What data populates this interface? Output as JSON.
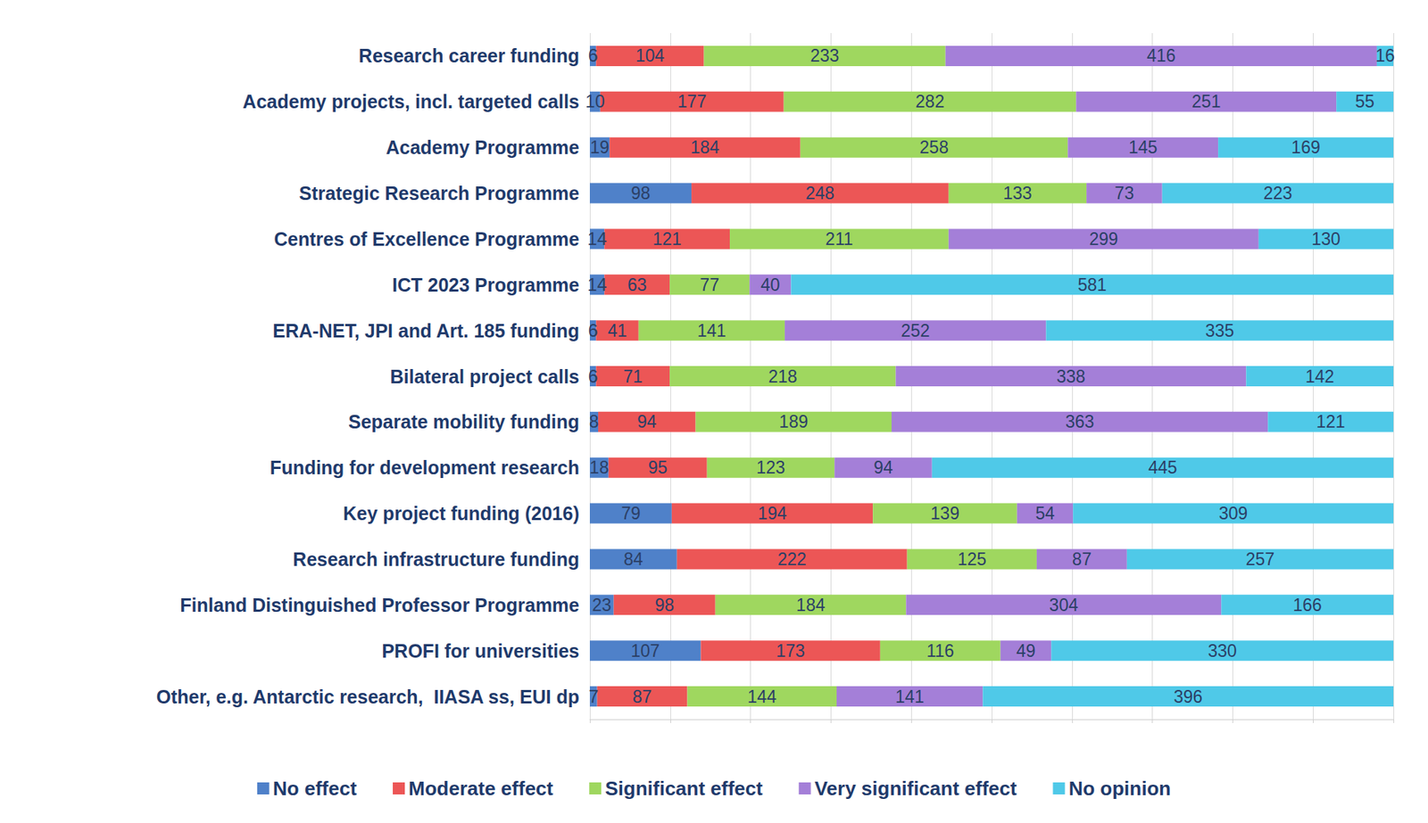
{
  "chart_data": {
    "type": "bar",
    "orientation": "horizontal",
    "stacked": true,
    "data_labels": true,
    "tick_labels": "y",
    "grid": true,
    "legend": "bottom",
    "categories": [
      "Research career funding",
      "Academy projects, incl. targeted calls",
      "Academy Programme",
      "Strategic Research Programme",
      "Centres of Excellence Programme",
      "ICT 2023 Programme",
      "ERA-NET, JPI and Art. 185 funding",
      "Bilateral project calls",
      "Separate mobility funding",
      "Funding for development research",
      "Key project funding (2016)",
      "Research infrastructure funding",
      "Finland Distinguished Professor Programme",
      "PROFI for universities",
      "Other, e.g. Antarctic research,  IIASA ss, EUI dp"
    ],
    "xlim": [
      0,
      775
    ],
    "xticks": [
      0,
      77.5,
      155,
      232.5,
      310,
      387.5,
      465,
      542.5,
      620,
      697.5,
      775
    ],
    "series": [
      {
        "name": "No effect",
        "color": "#4f81c9",
        "values": [
          6,
          10,
          19,
          98,
          14,
          14,
          6,
          6,
          8,
          18,
          79,
          84,
          23,
          107,
          7
        ]
      },
      {
        "name": "Moderate effect",
        "color": "#ec5656",
        "values": [
          104,
          177,
          184,
          248,
          121,
          63,
          41,
          71,
          94,
          95,
          194,
          222,
          98,
          173,
          87
        ]
      },
      {
        "name": "Significant effect",
        "color": "#9fd75f",
        "values": [
          233,
          282,
          258,
          133,
          211,
          77,
          141,
          218,
          189,
          123,
          139,
          125,
          184,
          116,
          144
        ]
      },
      {
        "name": "Very significant effect",
        "color": "#a47fd8",
        "values": [
          416,
          251,
          145,
          73,
          299,
          40,
          252,
          338,
          363,
          94,
          54,
          87,
          304,
          49,
          141
        ]
      },
      {
        "name": "No opinion",
        "color": "#4fc9e8",
        "values": [
          16,
          55,
          169,
          223,
          130,
          581,
          335,
          142,
          121,
          445,
          309,
          257,
          166,
          330,
          396
        ]
      }
    ]
  }
}
